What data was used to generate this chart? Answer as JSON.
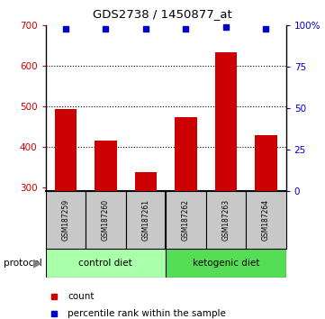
{
  "title": "GDS2738 / 1450877_at",
  "samples": [
    "GSM187259",
    "GSM187260",
    "GSM187261",
    "GSM187262",
    "GSM187263",
    "GSM187264"
  ],
  "counts": [
    494,
    415,
    338,
    474,
    635,
    428
  ],
  "percentile_ranks": [
    98,
    98,
    98,
    98,
    99,
    98
  ],
  "ylim_left": [
    290,
    700
  ],
  "ylim_right": [
    0,
    100
  ],
  "yticks_left": [
    300,
    400,
    500,
    600,
    700
  ],
  "yticks_right": [
    0,
    25,
    50,
    75,
    100
  ],
  "yright_labels": [
    "0",
    "25",
    "50",
    "75",
    "100%"
  ],
  "bar_color": "#cc0000",
  "dot_color": "#0000cc",
  "label_bg_color": "#c8c8c8",
  "control_diet_color": "#aaffaa",
  "ketogenic_diet_color": "#55dd55",
  "control_label": "control diet",
  "ketogenic_label": "ketogenic diet",
  "protocol_label": "protocol",
  "legend_count": "count",
  "legend_percentile": "percentile rank within the sample",
  "bar_bottom": 290,
  "fig_width": 3.61,
  "fig_height": 3.54,
  "dpi": 100
}
